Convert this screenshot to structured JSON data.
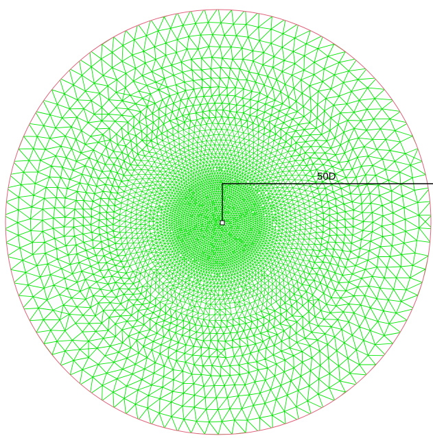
{
  "diagram": {
    "dimension_label": "50D",
    "colors": {
      "background": "#ffffff",
      "mesh": "#00e600",
      "mesh_dense": "#00e000",
      "boundary": "#e0607a",
      "annotation": "#000000"
    }
  }
}
